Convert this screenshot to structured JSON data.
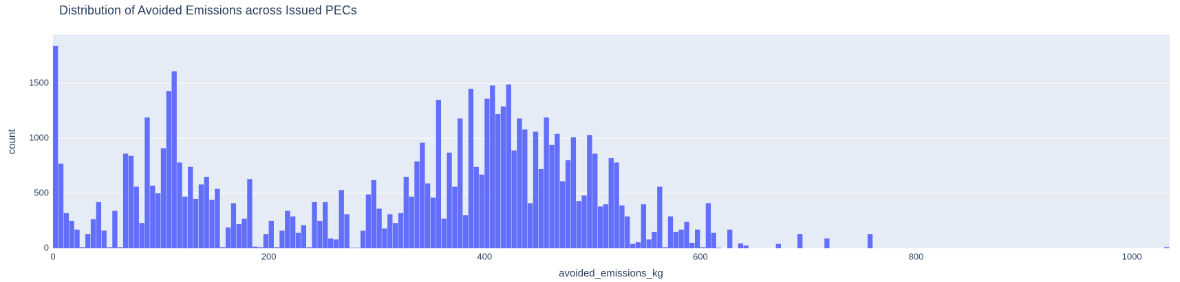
{
  "chart_data": {
    "type": "histogram",
    "title": "Distribution of Avoided Emissions across Issued PECs",
    "x_label": "avoided_emissions_kg",
    "y_label": "count",
    "color": "#636efa",
    "grid": true,
    "xlim": [
      0,
      1035
    ],
    "ylim": [
      0,
      1945
    ],
    "xticks": [
      0,
      200,
      400,
      600,
      800,
      1000
    ],
    "yticks": [
      0,
      500,
      1000,
      1500
    ],
    "bins": [
      0,
      5,
      10,
      15,
      20,
      25,
      30,
      35,
      40,
      45,
      50,
      55,
      60,
      65,
      70,
      75,
      80,
      85,
      90,
      95,
      100,
      105,
      110,
      115,
      120,
      125,
      130,
      135,
      140,
      145,
      150,
      155,
      160,
      165,
      170,
      175,
      180,
      185,
      190,
      195,
      200,
      205,
      210,
      215,
      220,
      225,
      230,
      235,
      240,
      245,
      250,
      255,
      260,
      265,
      270,
      275,
      280,
      285,
      290,
      295,
      300,
      305,
      310,
      315,
      320,
      325,
      330,
      335,
      340,
      345,
      350,
      355,
      360,
      365,
      370,
      375,
      380,
      385,
      390,
      395,
      400,
      405,
      410,
      415,
      420,
      425,
      430,
      435,
      440,
      445,
      450,
      455,
      460,
      465,
      470,
      475,
      480,
      485,
      490,
      495,
      500,
      505,
      510,
      515,
      520,
      525,
      530,
      535,
      540,
      545,
      550,
      555,
      560,
      565,
      570,
      575,
      580,
      585,
      590,
      595,
      600,
      605,
      610,
      615,
      620,
      625,
      630,
      635,
      640,
      645,
      650,
      655,
      660,
      665,
      670,
      675,
      680,
      685,
      690,
      695,
      700,
      705,
      710,
      715,
      720,
      725,
      730,
      735,
      740,
      745,
      750,
      755,
      760,
      765,
      770,
      775,
      780,
      785,
      790,
      795,
      800,
      805,
      810,
      815,
      820,
      825,
      830,
      835,
      840,
      845,
      850,
      855,
      860,
      865,
      870,
      875,
      880,
      885,
      890,
      895,
      900,
      905,
      910,
      915,
      920,
      925,
      930,
      935,
      940,
      945,
      950,
      955,
      960,
      965,
      970,
      975,
      980,
      985,
      990,
      995,
      1000,
      1005,
      1010,
      1015,
      1020,
      1025,
      1030,
      1035
    ],
    "values": [
      1840,
      770,
      320,
      250,
      170,
      10,
      130,
      265,
      420,
      160,
      10,
      340,
      10,
      860,
      840,
      560,
      230,
      1190,
      570,
      500,
      910,
      1430,
      1610,
      780,
      470,
      740,
      450,
      580,
      650,
      440,
      540,
      10,
      190,
      410,
      220,
      270,
      630,
      15,
      10,
      130,
      250,
      10,
      160,
      340,
      290,
      140,
      210,
      10,
      420,
      250,
      420,
      90,
      80,
      530,
      310,
      5,
      5,
      160,
      490,
      620,
      360,
      180,
      310,
      230,
      320,
      650,
      470,
      790,
      960,
      590,
      460,
      1350,
      270,
      870,
      560,
      1180,
      300,
      1450,
      740,
      670,
      1360,
      1480,
      1220,
      1290,
      1490,
      890,
      1180,
      1080,
      410,
      1060,
      720,
      1190,
      940,
      1040,
      610,
      800,
      1010,
      430,
      480,
      1030,
      860,
      380,
      400,
      820,
      780,
      390,
      290,
      40,
      55,
      400,
      80,
      150,
      560,
      10,
      290,
      150,
      170,
      240,
      50,
      170,
      10,
      410,
      140,
      5,
      0,
      170,
      0,
      45,
      25,
      0,
      0,
      0,
      0,
      0,
      40,
      0,
      0,
      0,
      130,
      0,
      0,
      0,
      0,
      90,
      0,
      0,
      0,
      0,
      0,
      0,
      0,
      130,
      0,
      0,
      0,
      0,
      0,
      0,
      0,
      0,
      0,
      0,
      0,
      0,
      0,
      0,
      0,
      0,
      0,
      0,
      0,
      0,
      0,
      0,
      0,
      0,
      0,
      0,
      0,
      0,
      0,
      0,
      0,
      0,
      0,
      0,
      0,
      0,
      0,
      0,
      0,
      0,
      0,
      0,
      0,
      0,
      0,
      0,
      0,
      0,
      0,
      0,
      0,
      0,
      0,
      0,
      10
    ]
  }
}
